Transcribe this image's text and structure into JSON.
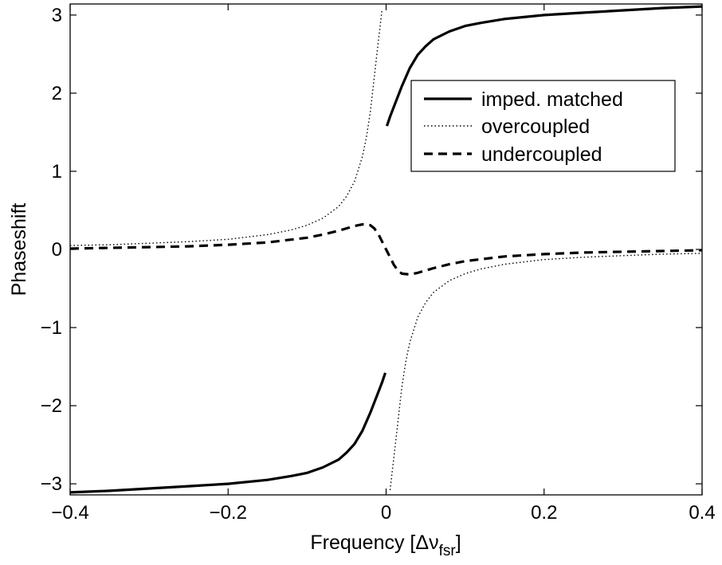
{
  "chart_data": {
    "type": "line",
    "title": "",
    "xlabel": "Frequency [Δν",
    "xlabel_sub": "fsr",
    "xlabel_close": "]",
    "ylabel": "Phaseshift",
    "xlim": [
      -0.4,
      0.4
    ],
    "ylim": [
      -3.1416,
      3.1416
    ],
    "xticks": [
      -0.4,
      -0.2,
      0,
      0.2,
      0.4
    ],
    "xtick_labels": [
      "−0.4",
      "−0.2",
      "0",
      "0.2",
      "0.4"
    ],
    "yticks": [
      -3,
      -2,
      -1,
      0,
      1,
      2,
      3
    ],
    "ytick_labels": [
      "−3",
      "−2",
      "−1",
      "0",
      "1",
      "2",
      "3"
    ],
    "grid": false,
    "legend_position": "top-right",
    "series": [
      {
        "name": "imped. matched",
        "style": "solid",
        "x": [
          -0.4,
          -0.35,
          -0.3,
          -0.25,
          -0.2,
          -0.15,
          -0.12,
          -0.1,
          -0.08,
          -0.06,
          -0.05,
          -0.04,
          -0.03,
          -0.02,
          -0.01,
          -0.005,
          -0.001
        ],
        "y": [
          -3.11,
          -3.09,
          -3.06,
          -3.03,
          -3.0,
          -2.95,
          -2.9,
          -2.86,
          -2.79,
          -2.69,
          -2.6,
          -2.49,
          -2.32,
          -2.09,
          -1.83,
          -1.7,
          -1.58
        ],
        "x2": [
          0.001,
          0.005,
          0.01,
          0.02,
          0.03,
          0.04,
          0.05,
          0.06,
          0.08,
          0.1,
          0.12,
          0.15,
          0.2,
          0.25,
          0.3,
          0.35,
          0.4
        ],
        "y2": [
          1.58,
          1.7,
          1.83,
          2.09,
          2.32,
          2.49,
          2.6,
          2.69,
          2.79,
          2.86,
          2.9,
          2.95,
          3.0,
          3.03,
          3.06,
          3.09,
          3.11
        ]
      },
      {
        "name": "overcoupled",
        "style": "dotted",
        "x": [
          -0.4,
          -0.35,
          -0.3,
          -0.25,
          -0.2,
          -0.15,
          -0.12,
          -0.1,
          -0.08,
          -0.06,
          -0.05,
          -0.04,
          -0.03,
          -0.025,
          -0.02,
          -0.015,
          -0.012,
          -0.01,
          -0.008,
          -0.006,
          -0.005
        ],
        "y": [
          0.05,
          0.06,
          0.08,
          0.1,
          0.13,
          0.19,
          0.25,
          0.31,
          0.4,
          0.55,
          0.68,
          0.87,
          1.19,
          1.43,
          1.76,
          2.2,
          2.47,
          2.65,
          2.82,
          3.0,
          3.08
        ],
        "x2": [
          0.005,
          0.006,
          0.008,
          0.01,
          0.012,
          0.015,
          0.02,
          0.025,
          0.03,
          0.04,
          0.05,
          0.06,
          0.08,
          0.1,
          0.12,
          0.15,
          0.2,
          0.25,
          0.3,
          0.35,
          0.4
        ],
        "y2": [
          -3.08,
          -3.0,
          -2.82,
          -2.65,
          -2.47,
          -2.2,
          -1.76,
          -1.43,
          -1.19,
          -0.87,
          -0.68,
          -0.55,
          -0.4,
          -0.31,
          -0.25,
          -0.19,
          -0.13,
          -0.1,
          -0.08,
          -0.06,
          -0.05
        ]
      },
      {
        "name": "undercoupled",
        "style": "dashed",
        "x": [
          -0.4,
          -0.35,
          -0.3,
          -0.25,
          -0.2,
          -0.15,
          -0.1,
          -0.08,
          -0.06,
          -0.04,
          -0.03,
          -0.02,
          -0.015,
          -0.01,
          -0.005,
          0,
          0.005,
          0.01,
          0.015,
          0.02,
          0.03,
          0.04,
          0.06,
          0.08,
          0.1,
          0.15,
          0.2,
          0.25,
          0.3,
          0.35,
          0.4
        ],
        "y": [
          0.01,
          0.02,
          0.03,
          0.04,
          0.06,
          0.09,
          0.15,
          0.19,
          0.24,
          0.3,
          0.32,
          0.31,
          0.27,
          0.2,
          0.1,
          0.0,
          -0.1,
          -0.2,
          -0.27,
          -0.31,
          -0.32,
          -0.3,
          -0.24,
          -0.19,
          -0.15,
          -0.09,
          -0.06,
          -0.04,
          -0.03,
          -0.02,
          -0.01
        ]
      }
    ]
  }
}
